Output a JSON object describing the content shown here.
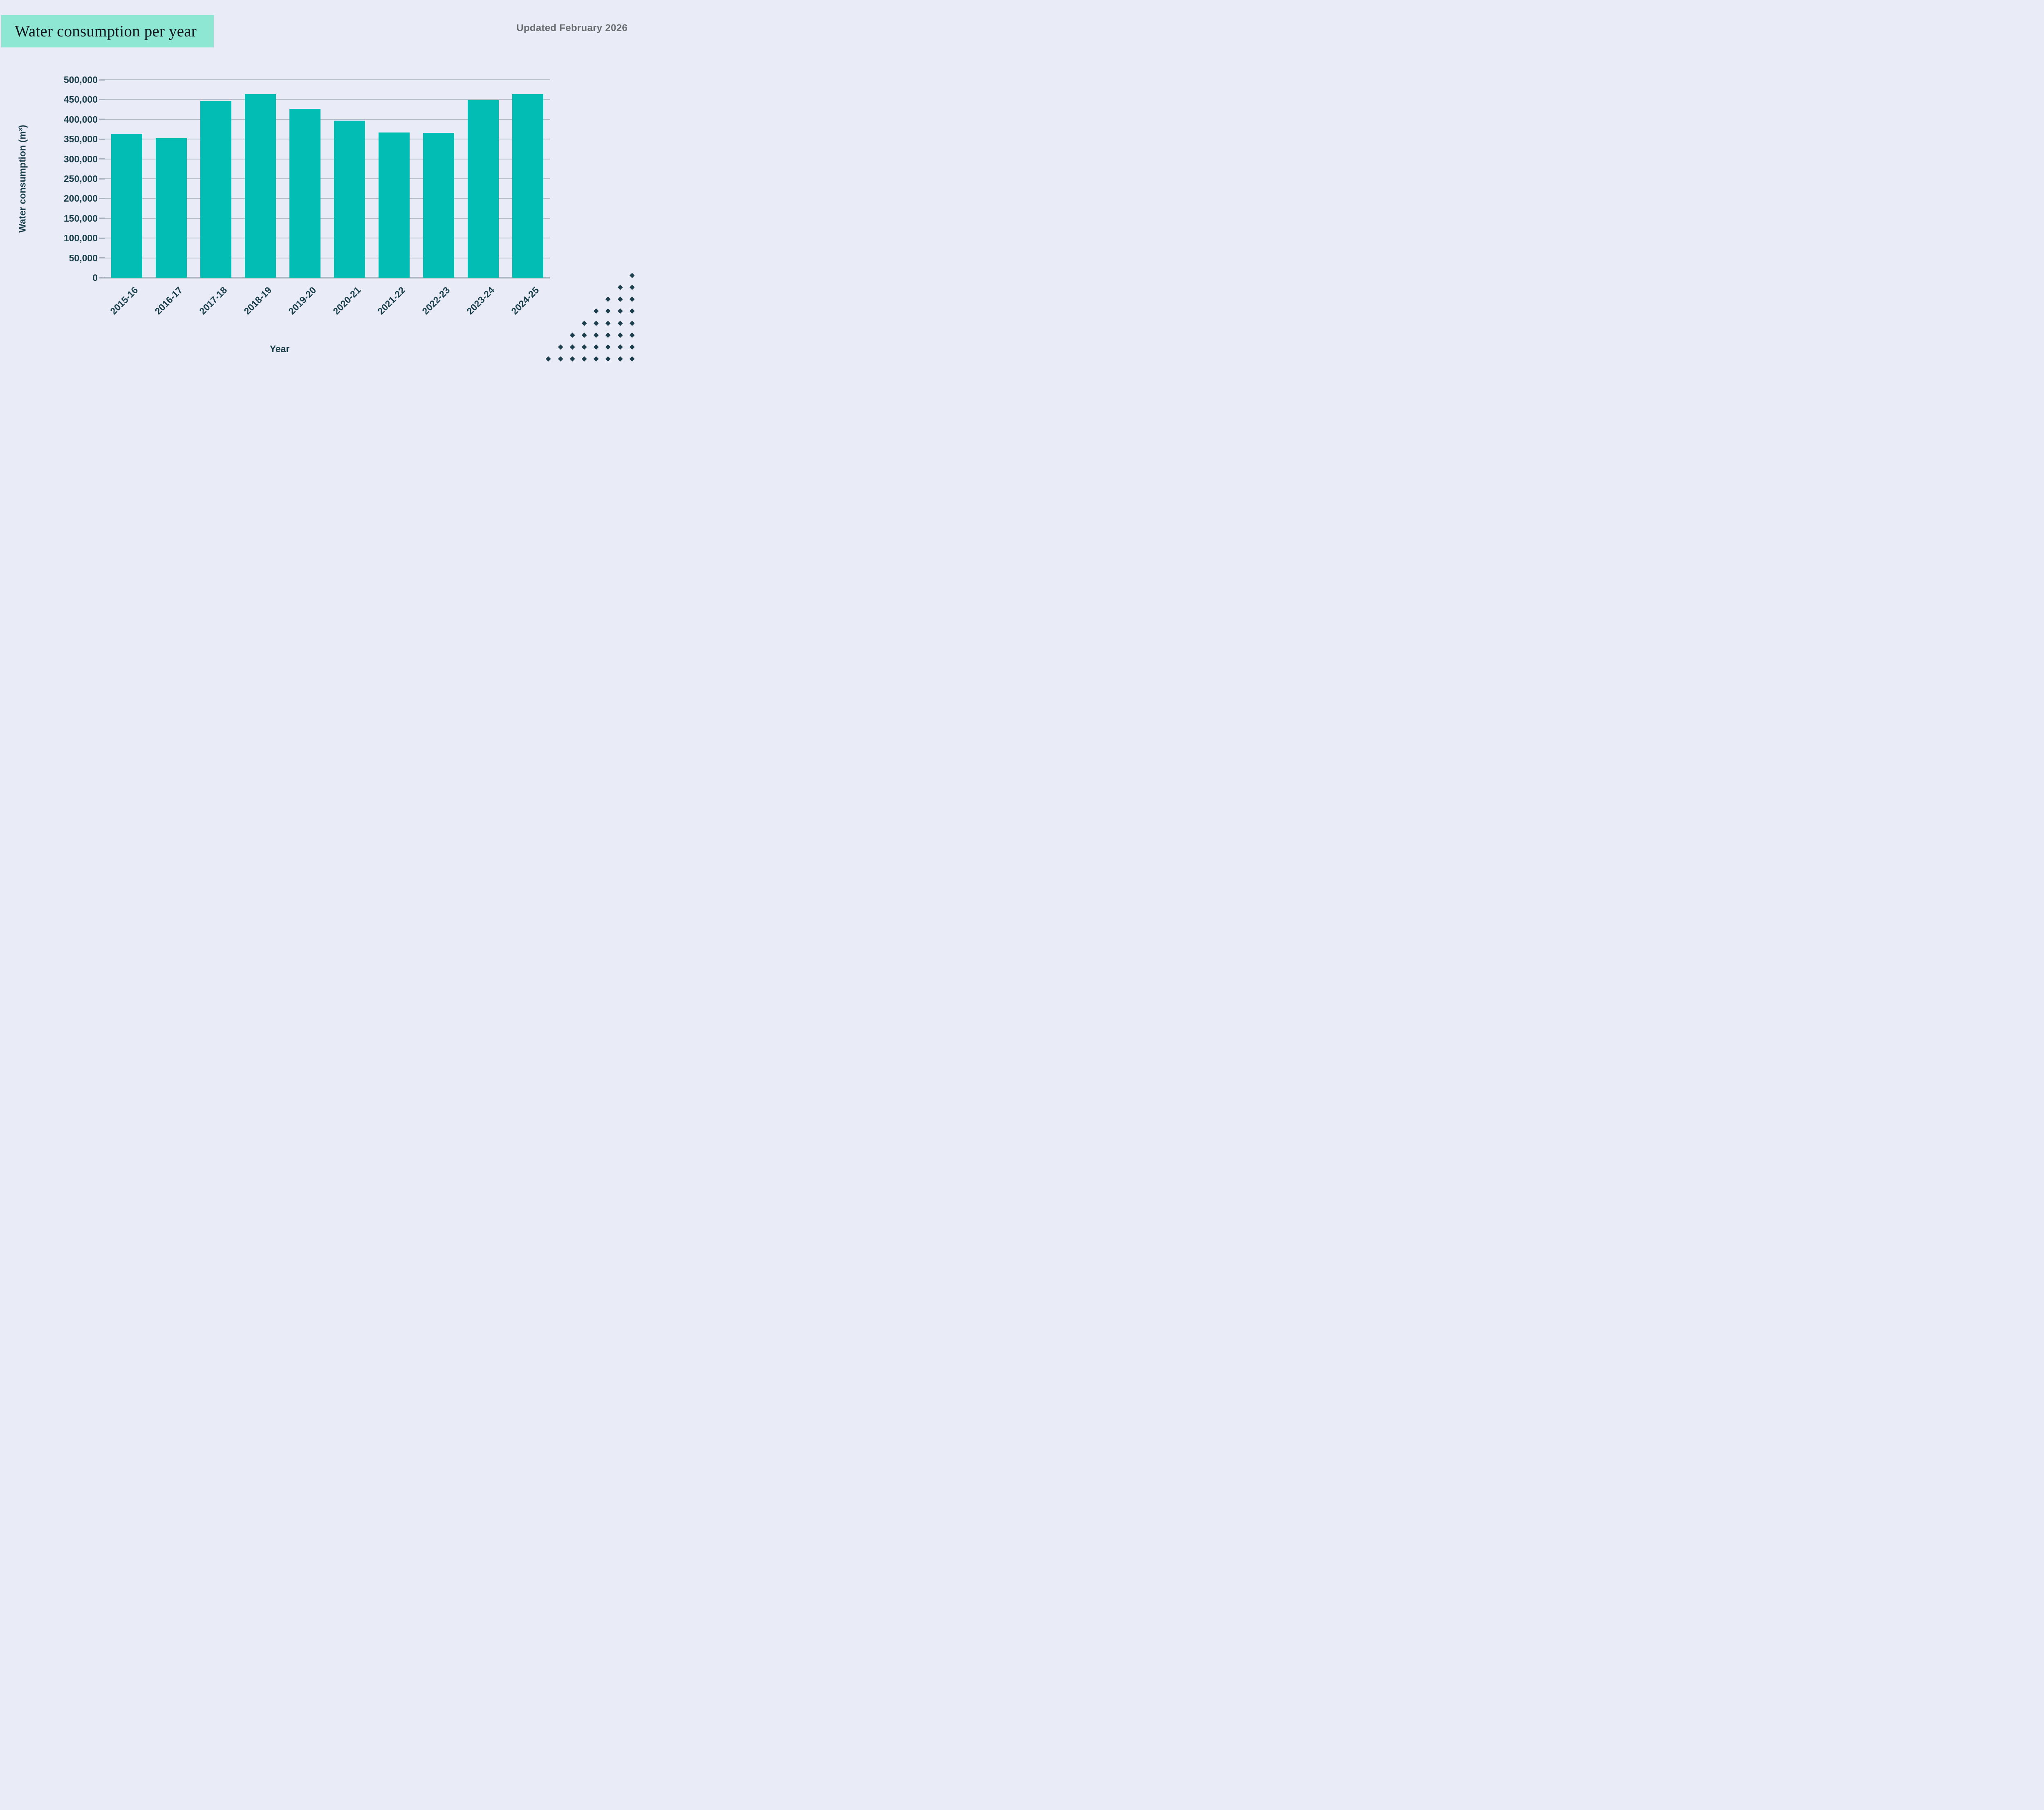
{
  "page": {
    "background_color": "#e9ebf7"
  },
  "header": {
    "title": "Water consumption per year",
    "title_box_color": "#8de7d3",
    "updated": "Updated February 2026",
    "updated_color": "#696d70"
  },
  "chart_data": {
    "type": "bar",
    "title": "Water consumption per year",
    "categories": [
      "2015-16",
      "2016-17",
      "2017-18",
      "2018-19",
      "2019-20",
      "2020-21",
      "2021-22",
      "2022-23",
      "2023-24",
      "2024-25"
    ],
    "values": [
      364000,
      352000,
      446000,
      464000,
      427000,
      397000,
      367000,
      366000,
      448000,
      464000
    ],
    "xlabel": "Year",
    "ylabel": "Water consumption (m³)",
    "ylim": [
      0,
      500000
    ],
    "ytick_step": 50000,
    "ytick_labels": [
      "0",
      "50,000",
      "100,000",
      "150,000",
      "200,000",
      "250,000",
      "300,000",
      "350,000",
      "400,000",
      "450,000",
      "500,000"
    ],
    "bar_color": "#02bdb3",
    "grid": true,
    "gridline_color": "#b7bfca",
    "axis_line_color": "#a9b3bf",
    "text_color": "#1b3e4b",
    "legend": false
  },
  "decor": {
    "diamond_color": "#1d3e4d",
    "diamond_rows": 8
  }
}
